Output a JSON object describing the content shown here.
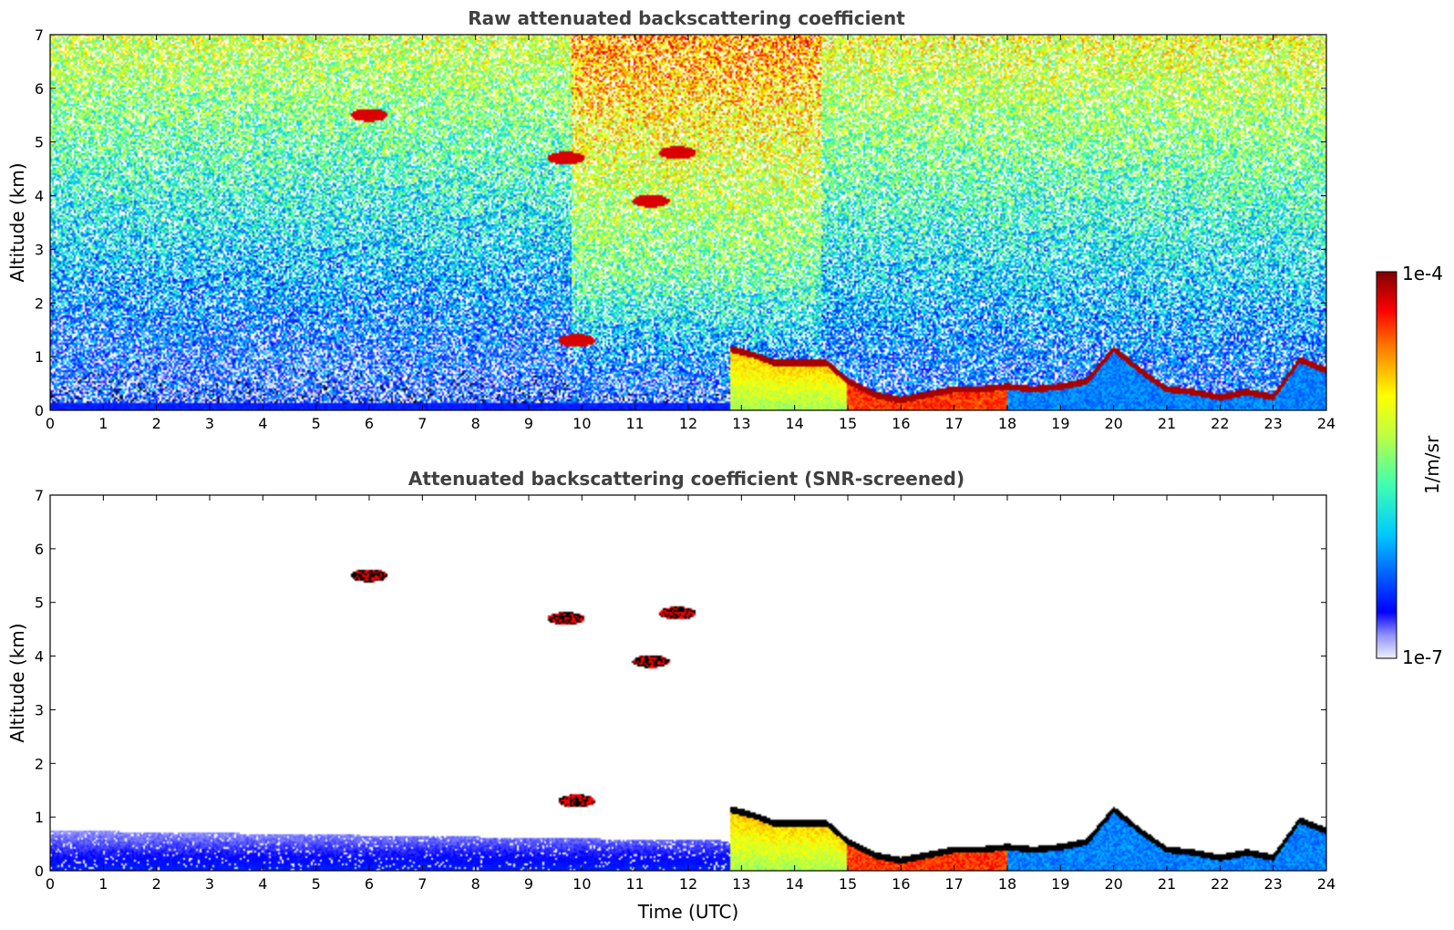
{
  "chart_data": [
    {
      "type": "heatmap",
      "title": "Raw attenuated backscattering coefficient",
      "xlabel": "",
      "ylabel": "Altitude (km)",
      "xlim": [
        0,
        24
      ],
      "ylim": [
        0,
        7
      ],
      "x_ticks": [
        "0",
        "1",
        "2",
        "3",
        "4",
        "5",
        "6",
        "7",
        "8",
        "9",
        "10",
        "11",
        "12",
        "13",
        "14",
        "15",
        "16",
        "17",
        "18",
        "19",
        "20",
        "21",
        "22",
        "23",
        "24"
      ],
      "y_ticks": [
        "0",
        "1",
        "2",
        "3",
        "4",
        "5",
        "6",
        "7"
      ],
      "features": [
        {
          "kind": "boundary_layer_top",
          "points": [
            [
              12.8,
              1.2
            ],
            [
              13.2,
              1.1
            ],
            [
              13.6,
              0.95
            ],
            [
              14.0,
              0.95
            ],
            [
              14.6,
              0.95
            ],
            [
              15.0,
              0.6
            ],
            [
              15.5,
              0.35
            ],
            [
              16.0,
              0.25
            ],
            [
              16.5,
              0.35
            ],
            [
              17.0,
              0.45
            ],
            [
              17.5,
              0.45
            ],
            [
              18.0,
              0.5
            ],
            [
              18.5,
              0.45
            ],
            [
              19.0,
              0.5
            ],
            [
              19.5,
              0.6
            ],
            [
              20.0,
              1.2
            ],
            [
              20.5,
              0.8
            ],
            [
              21.0,
              0.45
            ],
            [
              21.5,
              0.4
            ],
            [
              22.0,
              0.3
            ],
            [
              22.5,
              0.4
            ],
            [
              23.0,
              0.3
            ],
            [
              23.5,
              1.0
            ],
            [
              24.0,
              0.8
            ]
          ]
        },
        {
          "kind": "cloud",
          "x": 9.9,
          "y": 1.3
        },
        {
          "kind": "cloud",
          "x": 11.3,
          "y": 3.9
        },
        {
          "kind": "cloud",
          "x": 9.7,
          "y": 4.7
        },
        {
          "kind": "cloud",
          "x": 11.8,
          "y": 4.8
        },
        {
          "kind": "cloud",
          "x": 6.0,
          "y": 5.5
        }
      ]
    },
    {
      "type": "heatmap",
      "title": "Attenuated backscattering coefficient (SNR-screened)",
      "xlabel": "Time (UTC)",
      "ylabel": "Altitude (km)",
      "xlim": [
        0,
        24
      ],
      "ylim": [
        0,
        7
      ],
      "x_ticks": [
        "0",
        "1",
        "2",
        "3",
        "4",
        "5",
        "6",
        "7",
        "8",
        "9",
        "10",
        "11",
        "12",
        "13",
        "14",
        "15",
        "16",
        "17",
        "18",
        "19",
        "20",
        "21",
        "22",
        "23",
        "24"
      ],
      "y_ticks": [
        "0",
        "1",
        "2",
        "3",
        "4",
        "5",
        "6",
        "7"
      ]
    }
  ],
  "colorbar": {
    "label": "1/m/sr",
    "min_label": "1e-7",
    "max_label": "1e-4",
    "colormap": [
      "#f0f0ff",
      "#0000ff",
      "#00c8ff",
      "#80ff80",
      "#ffff00",
      "#ff8000",
      "#ff0000",
      "#800000"
    ]
  }
}
